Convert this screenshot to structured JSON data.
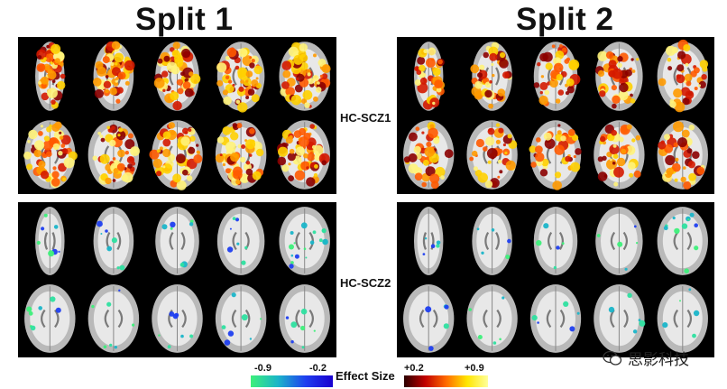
{
  "titles": {
    "split1": "Split 1",
    "split2": "Split 2"
  },
  "row_labels": {
    "top": "HC-SCZ1",
    "bottom": "HC-SCZ2"
  },
  "colorbar": {
    "title": "Effect Size",
    "neg_min": "-0.9",
    "neg_max": "-0.2",
    "pos_min": "+0.2",
    "pos_max": "+0.9",
    "neg_colors": [
      "#3df07a",
      "#1ab5c9",
      "#1f3ff0",
      "#1a00cf"
    ],
    "pos_colors": [
      "#2a0000",
      "#c00000",
      "#ff6a00",
      "#ffe600",
      "#ffff9a"
    ]
  },
  "watermark": {
    "text": "思影科技",
    "icon": "wechat-icon"
  },
  "colors": {
    "panel_bg": "#000000",
    "brain_gray": "#b9b9b9",
    "brain_white": "#e8e8e8"
  }
}
